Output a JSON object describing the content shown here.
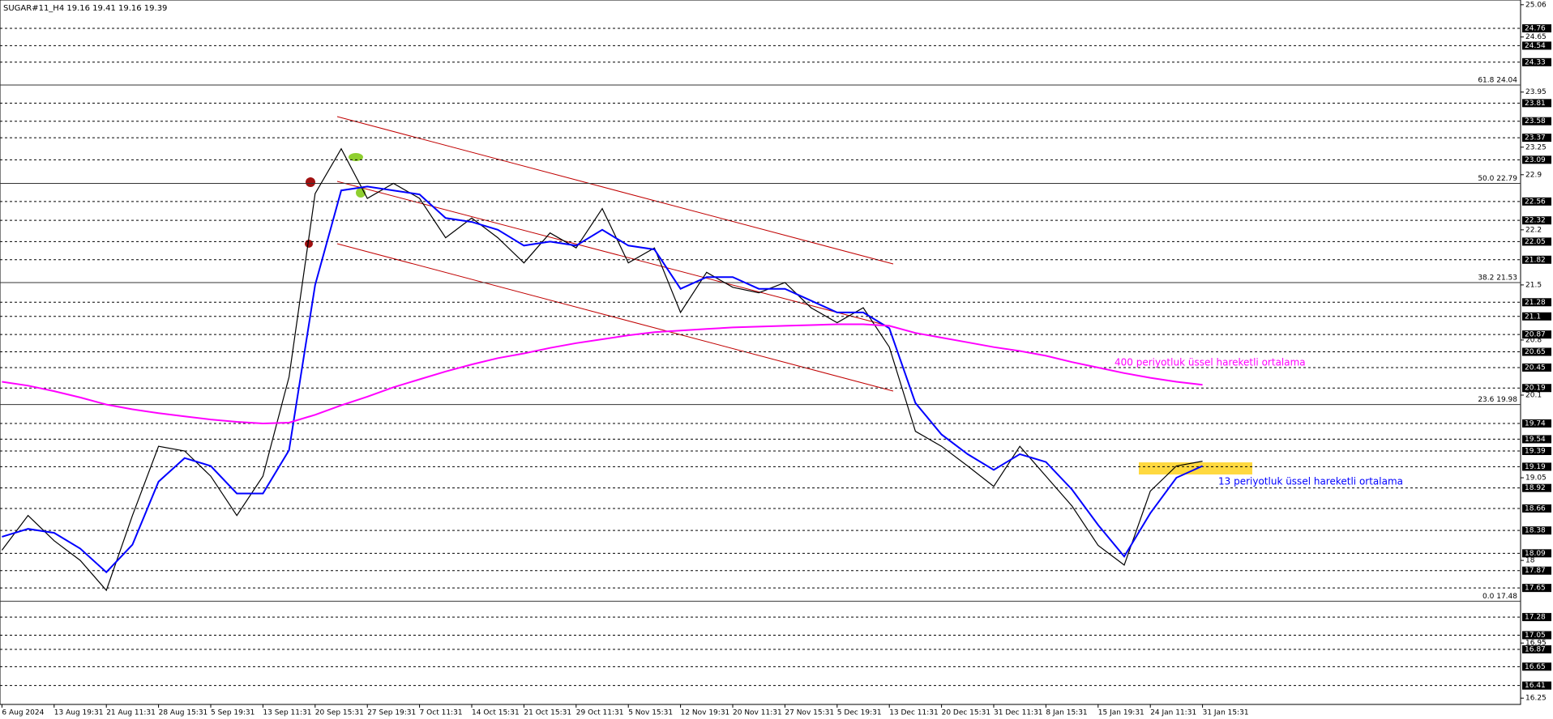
{
  "chart_data": {
    "type": "line",
    "title": "SUGAR#11_H4  19.16 19.41 19.16 19.39",
    "categories": [
      "6 Aug 2024",
      null,
      "13 Aug 19:31",
      null,
      "21 Aug 11:31",
      null,
      "28 Aug 15:31",
      null,
      "5 Sep 19:31",
      null,
      "13 Sep 11:31",
      null,
      "20 Sep 15:31",
      null,
      "27 Sep 19:31",
      null,
      "7 Oct 11:31",
      null,
      "14 Oct 15:31",
      null,
      "21 Oct 15:31",
      null,
      "29 Oct 11:31",
      null,
      "5 Nov 15:31",
      null,
      "12 Nov 19:31",
      null,
      "20 Nov 11:31",
      null,
      "27 Nov 15:31",
      null,
      "5 Dec 19:31",
      null,
      "13 Dec 11:31",
      null,
      "20 Dec 15:31",
      null,
      "31 Dec 11:31",
      null,
      "8 Jan 15:31",
      null,
      "15 Jan 19:31",
      null,
      "24 Jan 11:31",
      null,
      "31 Jan 15:31",
      null
    ],
    "series": [
      {
        "color": "#000000",
        "values": [
          18.13,
          18.57,
          18.25,
          18.0,
          17.62,
          18.57,
          19.45,
          19.39,
          19.07,
          18.57,
          19.07,
          20.33,
          22.66,
          23.23,
          22.6,
          22.79,
          22.6,
          22.1,
          22.35,
          22.1,
          21.78,
          22.16,
          21.97,
          22.47,
          21.78,
          21.97,
          21.15,
          21.66,
          21.47,
          21.4,
          21.53,
          21.21,
          21.02,
          21.21,
          20.71,
          19.64,
          19.45,
          19.2,
          18.94,
          19.45,
          19.07,
          18.69,
          18.19,
          17.94,
          18.88,
          19.2,
          19.26,
          null
        ]
      },
      {
        "name": "13 periyotluk üssel hareketli ortalama",
        "color": "#0000ff",
        "values": [
          18.3,
          18.4,
          18.35,
          18.15,
          17.85,
          18.2,
          19.0,
          19.3,
          19.2,
          18.85,
          18.85,
          19.4,
          21.5,
          22.7,
          22.75,
          22.7,
          22.65,
          22.35,
          22.3,
          22.2,
          22.0,
          22.05,
          22.0,
          22.2,
          22.0,
          21.95,
          21.45,
          21.6,
          21.6,
          21.45,
          21.45,
          21.3,
          21.15,
          21.15,
          20.95,
          20.0,
          19.6,
          19.35,
          19.15,
          19.35,
          19.25,
          18.9,
          18.45,
          18.05,
          18.6,
          19.05,
          19.2,
          null
        ]
      },
      {
        "name": "400 periyotluk üssel hareketli ortalama",
        "color": "#ff00ff",
        "values": [
          20.27,
          20.22,
          20.15,
          20.07,
          19.98,
          19.92,
          19.87,
          19.83,
          19.79,
          19.76,
          19.74,
          19.75,
          19.85,
          19.97,
          20.08,
          20.2,
          20.3,
          20.4,
          20.49,
          20.57,
          20.63,
          20.7,
          20.76,
          20.81,
          20.86,
          20.9,
          20.92,
          20.94,
          20.96,
          20.97,
          20.98,
          20.99,
          21.0,
          21.0,
          20.98,
          20.89,
          20.83,
          20.77,
          20.71,
          20.66,
          20.6,
          20.52,
          20.45,
          20.38,
          20.32,
          20.27,
          20.23,
          null
        ]
      }
    ],
    "ylim": [
      16.17,
      25.12
    ],
    "yticks": [
      25.06,
      24.65,
      23.95,
      23.25,
      22.9,
      22.2,
      21.5,
      20.8,
      20.1,
      19.05,
      18.0,
      16.95,
      16.25
    ],
    "levels": [
      24.76,
      24.54,
      24.33,
      23.81,
      23.58,
      23.37,
      23.09,
      22.56,
      22.32,
      22.05,
      21.82,
      21.28,
      21.1,
      20.87,
      20.65,
      20.45,
      20.19,
      19.74,
      19.54,
      19.39,
      19.19,
      18.92,
      18.66,
      18.38,
      18.09,
      17.87,
      17.65,
      17.28,
      17.05,
      16.87,
      16.65,
      16.41
    ],
    "fibonacci": [
      {
        "value": 24.04,
        "label": "61.8 24.04"
      },
      {
        "value": 22.79,
        "label": "50.0 22.79"
      },
      {
        "value": 21.53,
        "label": "38.2 21.53"
      },
      {
        "value": 19.98,
        "label": "23.6 19.98"
      },
      {
        "value": 17.48,
        "label": "0.0 17.48"
      }
    ]
  }
}
